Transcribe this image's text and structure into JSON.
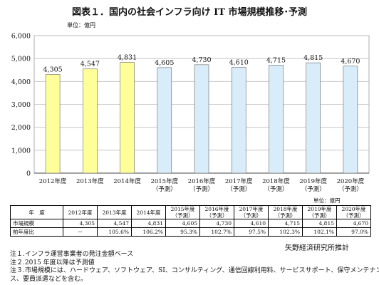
{
  "title": "図表１．国内の社会インフラ向け IT 市場規模推移･予測",
  "unit_label": "単位：億円",
  "chart_data": {
    "type": "bar",
    "categories": [
      [
        "2012年度"
      ],
      [
        "2013年度"
      ],
      [
        "2014年度"
      ],
      [
        "2015年度",
        "（予測）"
      ],
      [
        "2016年度",
        "（予測）"
      ],
      [
        "2017年度",
        "（予測）"
      ],
      [
        "2018年度",
        "（予測）"
      ],
      [
        "2019年度",
        "（予測）"
      ],
      [
        "2020年度",
        "（予測）"
      ]
    ],
    "values": [
      4305,
      4547,
      4831,
      4605,
      4730,
      4610,
      4715,
      4815,
      4670
    ],
    "value_labels": [
      "4,305",
      "4,547",
      "4,831",
      "4,605",
      "4,730",
      "4,610",
      "4,715",
      "4,815",
      "4,670"
    ],
    "ylim": [
      0,
      6000
    ],
    "yticks": [
      0,
      1000,
      2000,
      3000,
      4000,
      5000,
      6000
    ],
    "ytick_labels": [
      "0",
      "1,000",
      "2,000",
      "3,000",
      "4,000",
      "5,000",
      "6,000"
    ],
    "grid": true,
    "colors": {
      "actual_bar": "#ffff99",
      "forecast_bar": "#d9ecfa",
      "bar_edge": "#666666",
      "grid": "#bfbfbf"
    }
  },
  "table": {
    "header_label": "年　度",
    "header_cells": [
      [
        "2012年度"
      ],
      [
        "2013年度"
      ],
      [
        "2014年度"
      ],
      [
        "2015年度",
        "（予測）"
      ],
      [
        "2016年度",
        "（予測）"
      ],
      [
        "2017年度",
        "（予測）"
      ],
      [
        "2018年度",
        "（予測）"
      ],
      [
        "2019年度",
        "（予測）"
      ],
      [
        "2020年度",
        "（予測）"
      ]
    ],
    "rows": [
      {
        "label": "市場規模",
        "cells": [
          "4,305",
          "4,547",
          "4,831",
          "4,605",
          "4,730",
          "4,610",
          "4,715",
          "4,815",
          "4,670"
        ]
      },
      {
        "label": "前年度比",
        "cells": [
          "－",
          "105.6%",
          "106.2%",
          "95.3%",
          "102.7%",
          "97.5%",
          "102.3%",
          "102.1%",
          "97.0%"
        ]
      }
    ]
  },
  "source": "矢野経済研究所推計",
  "notes": [
    "注１.インフラ運営事業者の発注金額ベース",
    "注２.2015 年度以降は予測値",
    "注３.市場規模には、ハードウェア、ソフトウェア、SI、コンサルティング、通信回線利用料、サービスサポート、保守メンテナン",
    "ス、要員派遣などを含む。"
  ]
}
